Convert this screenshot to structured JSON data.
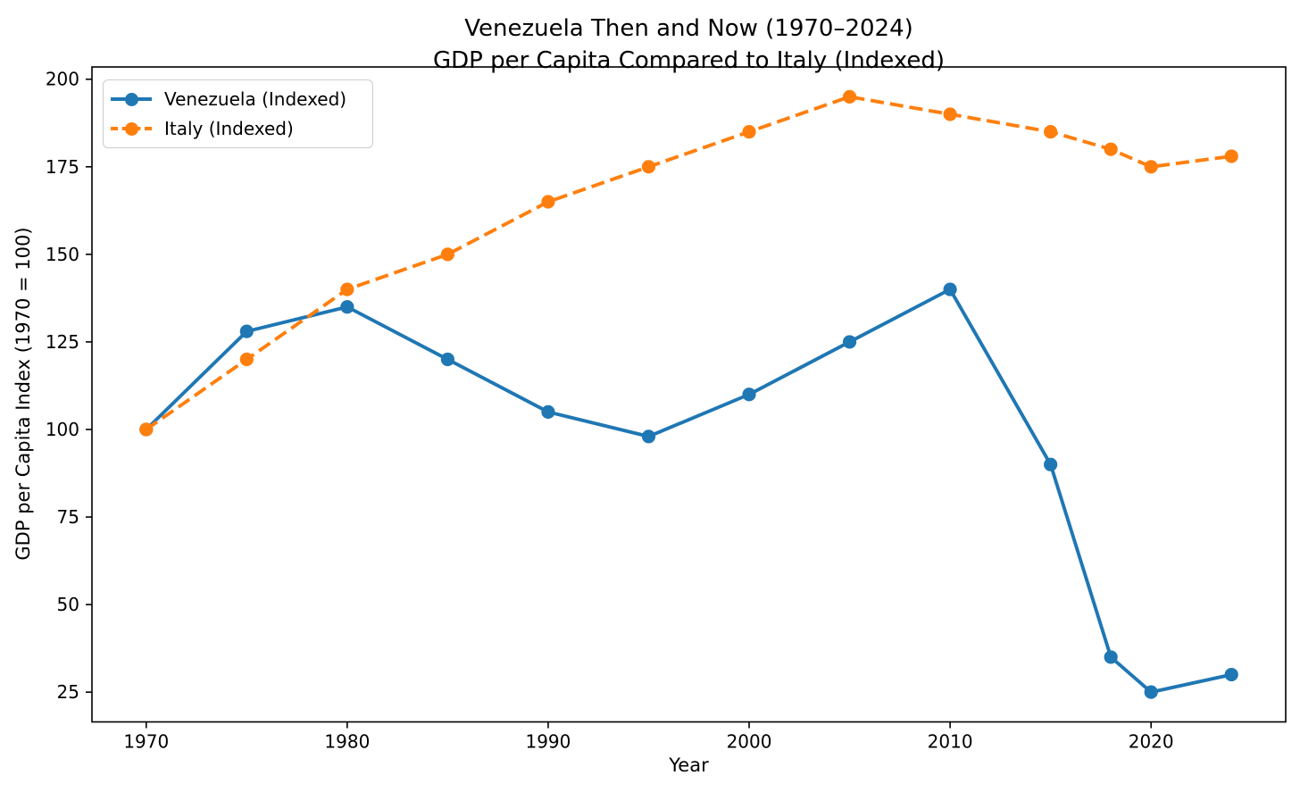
{
  "title": {
    "line1": "Venezuela Then and Now (1970–2024)",
    "line2": "GDP per Capita Compared to Italy (Indexed)"
  },
  "axes": {
    "xlabel": "Year",
    "ylabel": "GDP per Capita Index (1970 = 100)",
    "xticks": [
      1970,
      1980,
      1990,
      2000,
      2010,
      2020
    ],
    "yticks": [
      25,
      50,
      75,
      100,
      125,
      150,
      175,
      200
    ]
  },
  "legend": {
    "items": [
      {
        "label": "Venezuela (Indexed)",
        "color": "#1f77b4",
        "dashed": false
      },
      {
        "label": "Italy (Indexed)",
        "color": "#ff7f0e",
        "dashed": true
      }
    ]
  },
  "chart_data": {
    "type": "line",
    "title": "Venezuela Then and Now (1970–2024)\nGDP per Capita Compared to Italy (Indexed)",
    "xlabel": "Year",
    "ylabel": "GDP per Capita Index (1970 = 100)",
    "x": [
      1970,
      1975,
      1980,
      1985,
      1990,
      1995,
      2000,
      2005,
      2010,
      2015,
      2018,
      2020,
      2024
    ],
    "series": [
      {
        "name": "Venezuela (Indexed)",
        "values": [
          100,
          128,
          135,
          120,
          105,
          98,
          110,
          125,
          140,
          90,
          35,
          25,
          30
        ],
        "color": "#1f77b4",
        "linestyle": "solid",
        "marker": "circle"
      },
      {
        "name": "Italy (Indexed)",
        "values": [
          100,
          120,
          140,
          150,
          165,
          175,
          185,
          195,
          190,
          185,
          180,
          175,
          178
        ],
        "color": "#ff7f0e",
        "linestyle": "dashed",
        "marker": "circle"
      }
    ],
    "xlim": [
      1967.3,
      2026.7
    ],
    "ylim": [
      16.5,
      203.5
    ],
    "grid": false,
    "legend_position": "upper left",
    "frame_color": "#000000",
    "tick_label_color": "#000000"
  }
}
